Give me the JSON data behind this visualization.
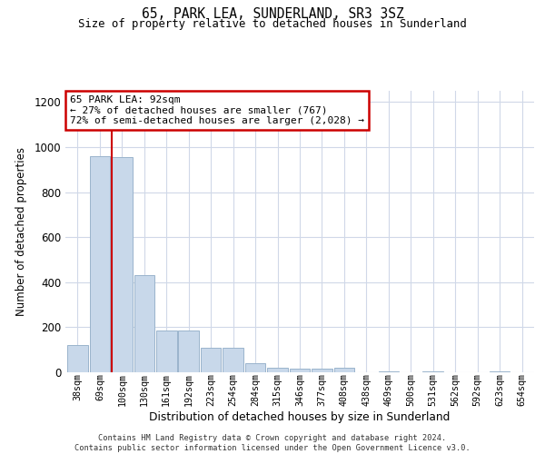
{
  "title": "65, PARK LEA, SUNDERLAND, SR3 3SZ",
  "subtitle": "Size of property relative to detached houses in Sunderland",
  "xlabel": "Distribution of detached houses by size in Sunderland",
  "ylabel": "Number of detached properties",
  "footer_line1": "Contains HM Land Registry data © Crown copyright and database right 2024.",
  "footer_line2": "Contains public sector information licensed under the Open Government Licence v3.0.",
  "annotation_title": "65 PARK LEA: 92sqm",
  "annotation_line1": "← 27% of detached houses are smaller (767)",
  "annotation_line2": "72% of semi-detached houses are larger (2,028) →",
  "bin_labels": [
    "38sqm",
    "69sqm",
    "100sqm",
    "130sqm",
    "161sqm",
    "192sqm",
    "223sqm",
    "254sqm",
    "284sqm",
    "315sqm",
    "346sqm",
    "377sqm",
    "408sqm",
    "438sqm",
    "469sqm",
    "500sqm",
    "531sqm",
    "562sqm",
    "592sqm",
    "623sqm",
    "654sqm"
  ],
  "bin_values": [
    120,
    960,
    955,
    430,
    185,
    185,
    110,
    110,
    40,
    20,
    15,
    15,
    20,
    0,
    5,
    0,
    5,
    0,
    0,
    5,
    0
  ],
  "bar_color": "#c8d8ea",
  "bar_edge_color": "#9ab4cc",
  "highlight_line_color": "#cc0000",
  "annotation_box_color": "#ffffff",
  "annotation_box_edge": "#cc0000",
  "background_color": "#ffffff",
  "grid_color": "#d0d8e8",
  "ylim": [
    0,
    1250
  ],
  "yticks": [
    0,
    200,
    400,
    600,
    800,
    1000,
    1200
  ],
  "highlight_bin_index": 2
}
